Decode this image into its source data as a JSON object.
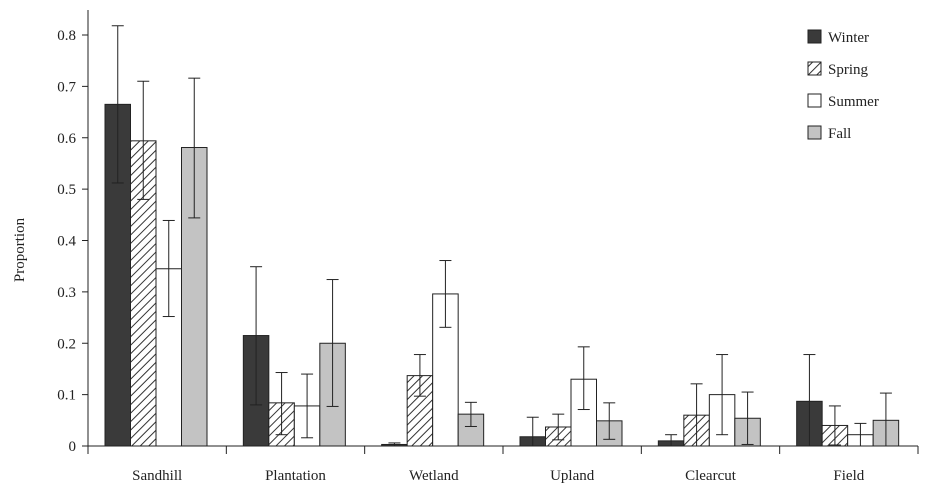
{
  "chart_data": {
    "type": "bar",
    "ylabel": "Proportion",
    "ylim": [
      0,
      0.85
    ],
    "yticks": [
      "0",
      "0.1",
      "0.2",
      "0.3",
      "0.4",
      "0.5",
      "0.6",
      "0.7",
      "0.8"
    ],
    "grid": false,
    "legend_position": "top-right",
    "categories": [
      "Sandhill",
      "Plantation",
      "Wetland",
      "Upland",
      "Clearcut",
      "Field"
    ],
    "series": [
      {
        "name": "Winter",
        "fill": "#3a3a3a",
        "pattern": "solid",
        "values": [
          0.665,
          0.215,
          0.003,
          0.018,
          0.01,
          0.087
        ],
        "err_low": [
          0.512,
          0.08,
          0.0,
          0.0,
          0.0,
          0.0
        ],
        "err_high": [
          0.818,
          0.349,
          0.006,
          0.056,
          0.022,
          0.178
        ]
      },
      {
        "name": "Spring",
        "fill": "#ffffff",
        "pattern": "hatch",
        "values": [
          0.594,
          0.084,
          0.137,
          0.037,
          0.06,
          0.04
        ],
        "err_low": [
          0.48,
          0.022,
          0.097,
          0.012,
          0.0,
          0.002
        ],
        "err_high": [
          0.71,
          0.143,
          0.178,
          0.062,
          0.121,
          0.078
        ]
      },
      {
        "name": "Summer",
        "fill": "#ffffff",
        "pattern": "solid",
        "values": [
          0.345,
          0.078,
          0.296,
          0.13,
          0.1,
          0.022
        ],
        "err_low": [
          0.252,
          0.016,
          0.231,
          0.071,
          0.022,
          0.0
        ],
        "err_high": [
          0.439,
          0.14,
          0.361,
          0.193,
          0.178,
          0.044
        ]
      },
      {
        "name": "Fall",
        "fill": "#c3c3c3",
        "pattern": "solid",
        "values": [
          0.581,
          0.2,
          0.062,
          0.049,
          0.054,
          0.05
        ],
        "err_low": [
          0.444,
          0.077,
          0.038,
          0.013,
          0.003,
          0.0
        ],
        "err_high": [
          0.716,
          0.324,
          0.085,
          0.084,
          0.105,
          0.103
        ]
      }
    ]
  }
}
